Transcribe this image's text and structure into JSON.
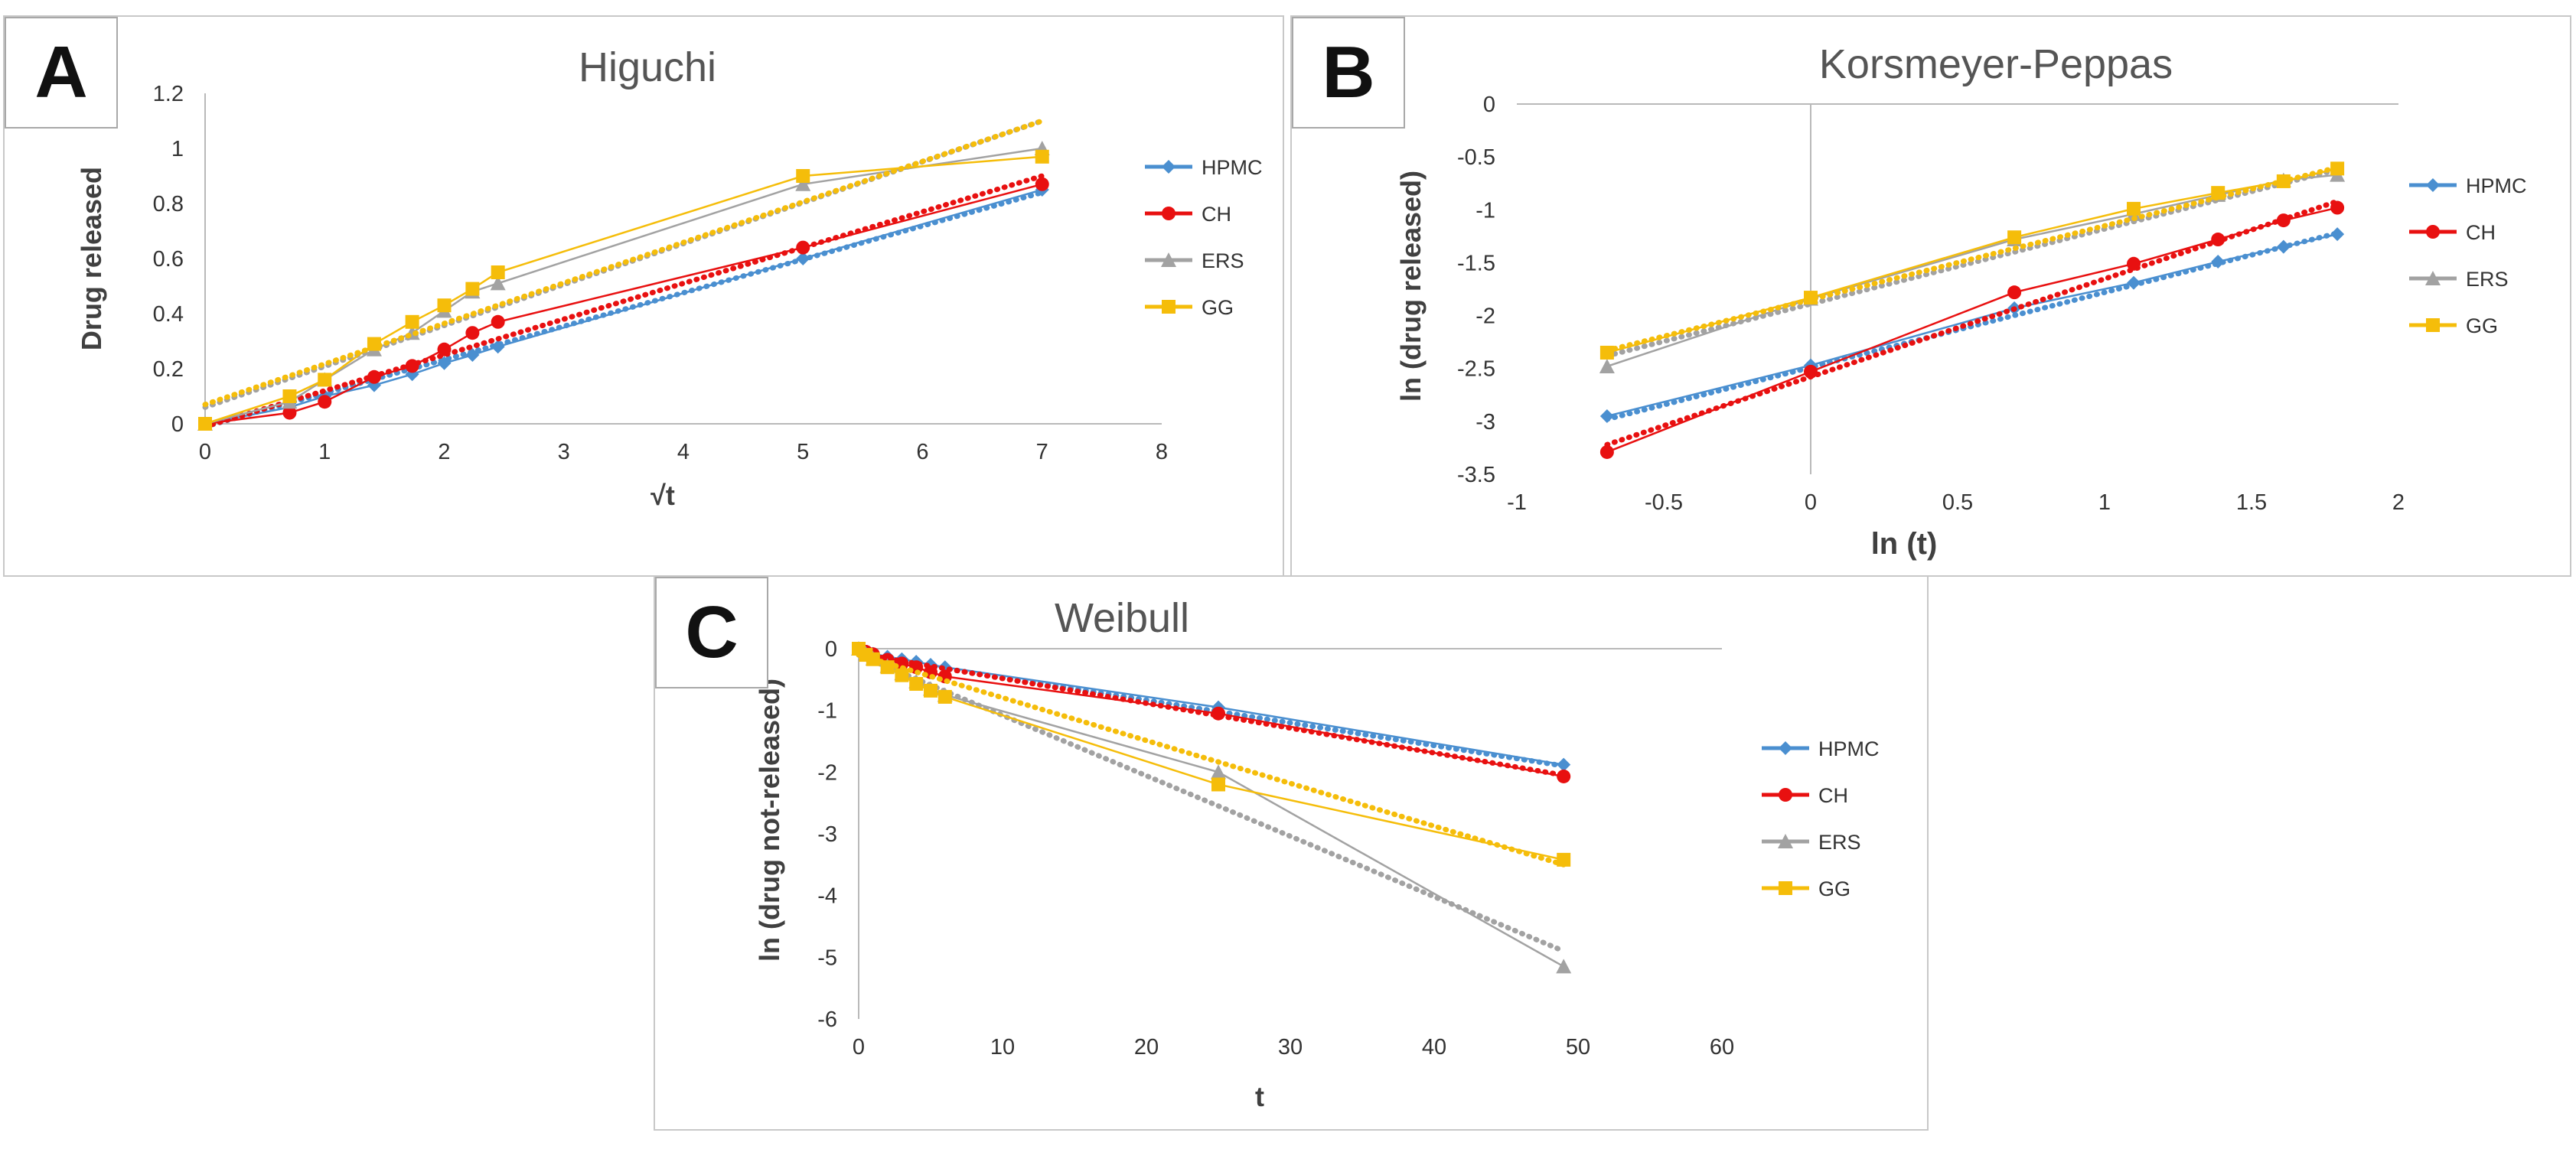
{
  "colors": {
    "HPMC": "#4a8fd0",
    "CH": "#e81010",
    "ERS": "#a2a2a2",
    "GG": "#f5bd0a"
  },
  "chart_data": [
    {
      "panel": "A",
      "type": "scatter",
      "title": "Higuchi",
      "xlabel": "√t",
      "ylabel": "Drug released",
      "xlim": [
        0,
        8
      ],
      "ylim": [
        0,
        1.2
      ],
      "xticks": [
        "0",
        "1",
        "2",
        "3",
        "4",
        "5",
        "6",
        "7",
        "8"
      ],
      "xtick_values": [
        0,
        1,
        2,
        3,
        4,
        5,
        6,
        7,
        8
      ],
      "yticks": [
        "0",
        "0.2",
        "0.4",
        "0.6",
        "0.8",
        "1",
        "1.2"
      ],
      "ytick_values": [
        0,
        0.2,
        0.4,
        0.6,
        0.8,
        1.0,
        1.2
      ],
      "legend": [
        "HPMC",
        "CH",
        "ERS",
        "GG"
      ],
      "series": [
        {
          "name": "HPMC",
          "marker": "diamond",
          "x": [
            0,
            0.707,
            1,
            1.414,
            1.732,
            2,
            2.236,
            2.449,
            5,
            7
          ],
          "y": [
            0,
            0.06,
            0.1,
            0.14,
            0.18,
            0.22,
            0.25,
            0.28,
            0.6,
            0.85
          ],
          "trend": [
            [
              0,
              -0.01
            ],
            [
              7,
              0.84
            ]
          ]
        },
        {
          "name": "CH",
          "marker": "circle",
          "x": [
            0,
            0.707,
            1,
            1.414,
            1.732,
            2,
            2.236,
            2.449,
            5,
            7
          ],
          "y": [
            0,
            0.04,
            0.08,
            0.17,
            0.21,
            0.27,
            0.33,
            0.37,
            0.64,
            0.87
          ],
          "trend": [
            [
              0,
              -0.01
            ],
            [
              7,
              0.9
            ]
          ]
        },
        {
          "name": "ERS",
          "marker": "triangle",
          "x": [
            0,
            0.707,
            1,
            1.414,
            1.732,
            2,
            2.236,
            2.449,
            5,
            7
          ],
          "y": [
            0,
            0.08,
            0.16,
            0.27,
            0.33,
            0.41,
            0.48,
            0.51,
            0.87,
            1.0
          ],
          "trend": [
            [
              0,
              0.06
            ],
            [
              7,
              1.1
            ]
          ]
        },
        {
          "name": "GG",
          "marker": "square",
          "x": [
            0,
            0.707,
            1,
            1.414,
            1.732,
            2,
            2.236,
            2.449,
            5,
            7
          ],
          "y": [
            0,
            0.1,
            0.16,
            0.29,
            0.37,
            0.43,
            0.49,
            0.55,
            0.9,
            0.97
          ],
          "trend": [
            [
              0,
              0.07
            ],
            [
              7,
              1.1
            ]
          ]
        }
      ]
    },
    {
      "panel": "B",
      "type": "scatter",
      "title": "Korsmeyer-Peppas",
      "xlabel": "ln (t)",
      "ylabel": "ln (drug released)",
      "xlim": [
        -1,
        2
      ],
      "ylim": [
        -3.5,
        0
      ],
      "xticks": [
        "-1",
        "-0.5",
        "0",
        "0.5",
        "1",
        "1.5",
        "2"
      ],
      "xtick_values": [
        -1,
        -0.5,
        0,
        0.5,
        1,
        1.5,
        2
      ],
      "yticks": [
        "-3.5",
        "-3",
        "-2.5",
        "-2",
        "-1.5",
        "-1",
        "-0.5",
        "0"
      ],
      "ytick_values": [
        -3.5,
        -3,
        -2.5,
        -2,
        -1.5,
        -1,
        -0.5,
        0
      ],
      "legend": [
        "HPMC",
        "CH",
        "ERS",
        "GG"
      ],
      "series": [
        {
          "name": "HPMC",
          "marker": "diamond",
          "x": [
            -0.693,
            0,
            0.693,
            1.099,
            1.386,
            1.609,
            1.792
          ],
          "y": [
            -2.95,
            -2.47,
            -1.93,
            -1.69,
            -1.49,
            -1.35,
            -1.23
          ],
          "trend": [
            [
              -0.693,
              -2.98
            ],
            [
              1.792,
              -1.22
            ]
          ]
        },
        {
          "name": "CH",
          "marker": "circle",
          "x": [
            -0.693,
            0,
            0.693,
            1.099,
            1.386,
            1.609,
            1.792
          ],
          "y": [
            -3.29,
            -2.53,
            -1.78,
            -1.51,
            -1.28,
            -1.1,
            -0.98
          ],
          "trend": [
            [
              -0.693,
              -3.22
            ],
            [
              1.792,
              -0.92
            ]
          ]
        },
        {
          "name": "ERS",
          "marker": "triangle",
          "x": [
            -0.693,
            0,
            0.693,
            1.099,
            1.386,
            1.609,
            1.792
          ],
          "y": [
            -2.48,
            -1.84,
            -1.28,
            -1.04,
            -0.86,
            -0.72,
            -0.67
          ],
          "trend": [
            [
              -0.693,
              -2.38
            ],
            [
              1.792,
              -0.62
            ]
          ]
        },
        {
          "name": "GG",
          "marker": "square",
          "x": [
            -0.693,
            0,
            0.693,
            1.099,
            1.386,
            1.609,
            1.792
          ],
          "y": [
            -2.35,
            -1.83,
            -1.26,
            -0.99,
            -0.84,
            -0.73,
            -0.61
          ],
          "trend": [
            [
              -0.693,
              -2.33
            ],
            [
              1.792,
              -0.6
            ]
          ]
        }
      ]
    },
    {
      "panel": "C",
      "type": "scatter",
      "title": "Weibull",
      "xlabel": "t",
      "ylabel": "ln (drug not-released)",
      "xlim": [
        0,
        60
      ],
      "ylim": [
        -6,
        0
      ],
      "xticks": [
        "0",
        "10",
        "20",
        "30",
        "40",
        "50",
        "60"
      ],
      "xtick_values": [
        0,
        10,
        20,
        30,
        40,
        50,
        60
      ],
      "yticks": [
        "-6",
        "-5",
        "-4",
        "-3",
        "-2",
        "-1",
        "0"
      ],
      "ytick_values": [
        -6,
        -5,
        -4,
        -3,
        -2,
        -1,
        0
      ],
      "legend": [
        "HPMC",
        "CH",
        "ERS",
        "GG"
      ],
      "series": [
        {
          "name": "HPMC",
          "marker": "diamond",
          "x": [
            0,
            0.5,
            1,
            2,
            3,
            4,
            5,
            6,
            25,
            49
          ],
          "y": [
            0,
            -0.05,
            -0.08,
            -0.13,
            -0.17,
            -0.21,
            -0.26,
            -0.3,
            -0.95,
            -1.88
          ],
          "trend": [
            [
              0,
              -0.1
            ],
            [
              49,
              -1.9
            ]
          ]
        },
        {
          "name": "CH",
          "marker": "circle",
          "x": [
            0,
            0.5,
            1,
            2,
            3,
            4,
            5,
            6,
            25,
            49
          ],
          "y": [
            0,
            -0.05,
            -0.09,
            -0.18,
            -0.24,
            -0.3,
            -0.38,
            -0.45,
            -1.05,
            -2.07
          ],
          "trend": [
            [
              0,
              -0.08
            ],
            [
              49,
              -2.05
            ]
          ]
        },
        {
          "name": "ERS",
          "marker": "triangle",
          "x": [
            0,
            0.5,
            1,
            2,
            3,
            4,
            5,
            6,
            25,
            49
          ],
          "y": [
            0,
            -0.08,
            -0.16,
            -0.28,
            -0.4,
            -0.53,
            -0.65,
            -0.75,
            -2.0,
            -5.15
          ],
          "trend": [
            [
              0,
              -0.1
            ],
            [
              49,
              -4.9
            ]
          ]
        },
        {
          "name": "GG",
          "marker": "square",
          "x": [
            0,
            0.5,
            1,
            2,
            3,
            4,
            5,
            6,
            25,
            49
          ],
          "y": [
            0,
            -0.1,
            -0.17,
            -0.3,
            -0.43,
            -0.57,
            -0.68,
            -0.78,
            -2.2,
            -3.42
          ],
          "trend": [
            [
              0,
              -0.1
            ],
            [
              49,
              -3.5
            ]
          ]
        }
      ]
    }
  ]
}
